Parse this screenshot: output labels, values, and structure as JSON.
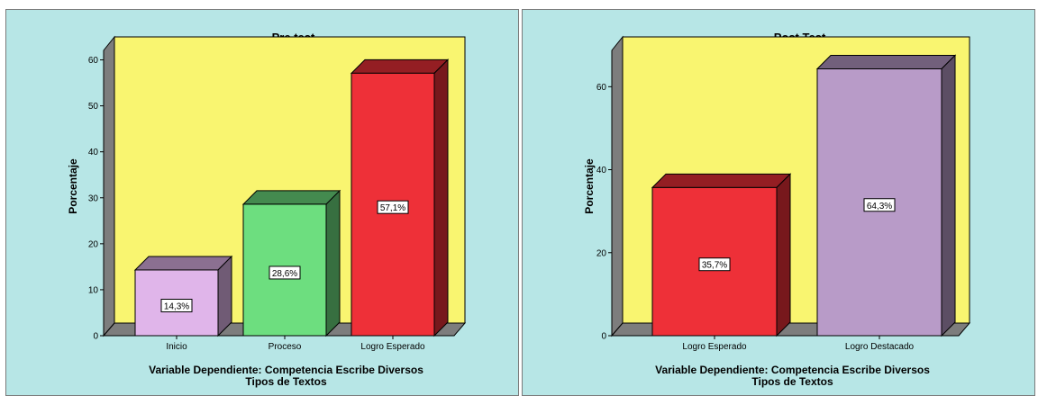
{
  "chart_data": [
    {
      "type": "bar",
      "title": "Pre test",
      "xlabel": [
        "Variable Dependiente: Competencia Escribe Diversos",
        "Tipos de Textos"
      ],
      "ylabel": "Porcentaje",
      "ylim": [
        0,
        65
      ],
      "yticks": [
        0,
        10,
        20,
        30,
        40,
        50,
        60
      ],
      "grid": false,
      "categories": [
        "Inicio",
        "Proceso",
        "Logro Esperado"
      ],
      "values": [
        14.3,
        28.6,
        57.1
      ],
      "labels": [
        "14,3%",
        "28,6%",
        "57,1%"
      ],
      "colors": [
        "#e0b5ea",
        "#6dde7f",
        "#ee3038"
      ]
    },
    {
      "type": "bar",
      "title": "Post Test",
      "xlabel": [
        "Variable Dependiente: Competencia Escribe Diversos",
        "Tipos de Textos"
      ],
      "ylabel": "Porcentaje",
      "ylim": [
        0,
        72
      ],
      "yticks": [
        0,
        20,
        40,
        60
      ],
      "grid": false,
      "categories": [
        "Logro Esperado",
        "Logro Destacado"
      ],
      "values": [
        35.7,
        64.3
      ],
      "labels": [
        "35,7%",
        "64,3%"
      ],
      "colors": [
        "#ee3038",
        "#b89bc8"
      ]
    }
  ],
  "style": {
    "plot_background": "#f9f570",
    "panel_background": "#b7e6e6",
    "wall_color": "#7d7d7d"
  }
}
